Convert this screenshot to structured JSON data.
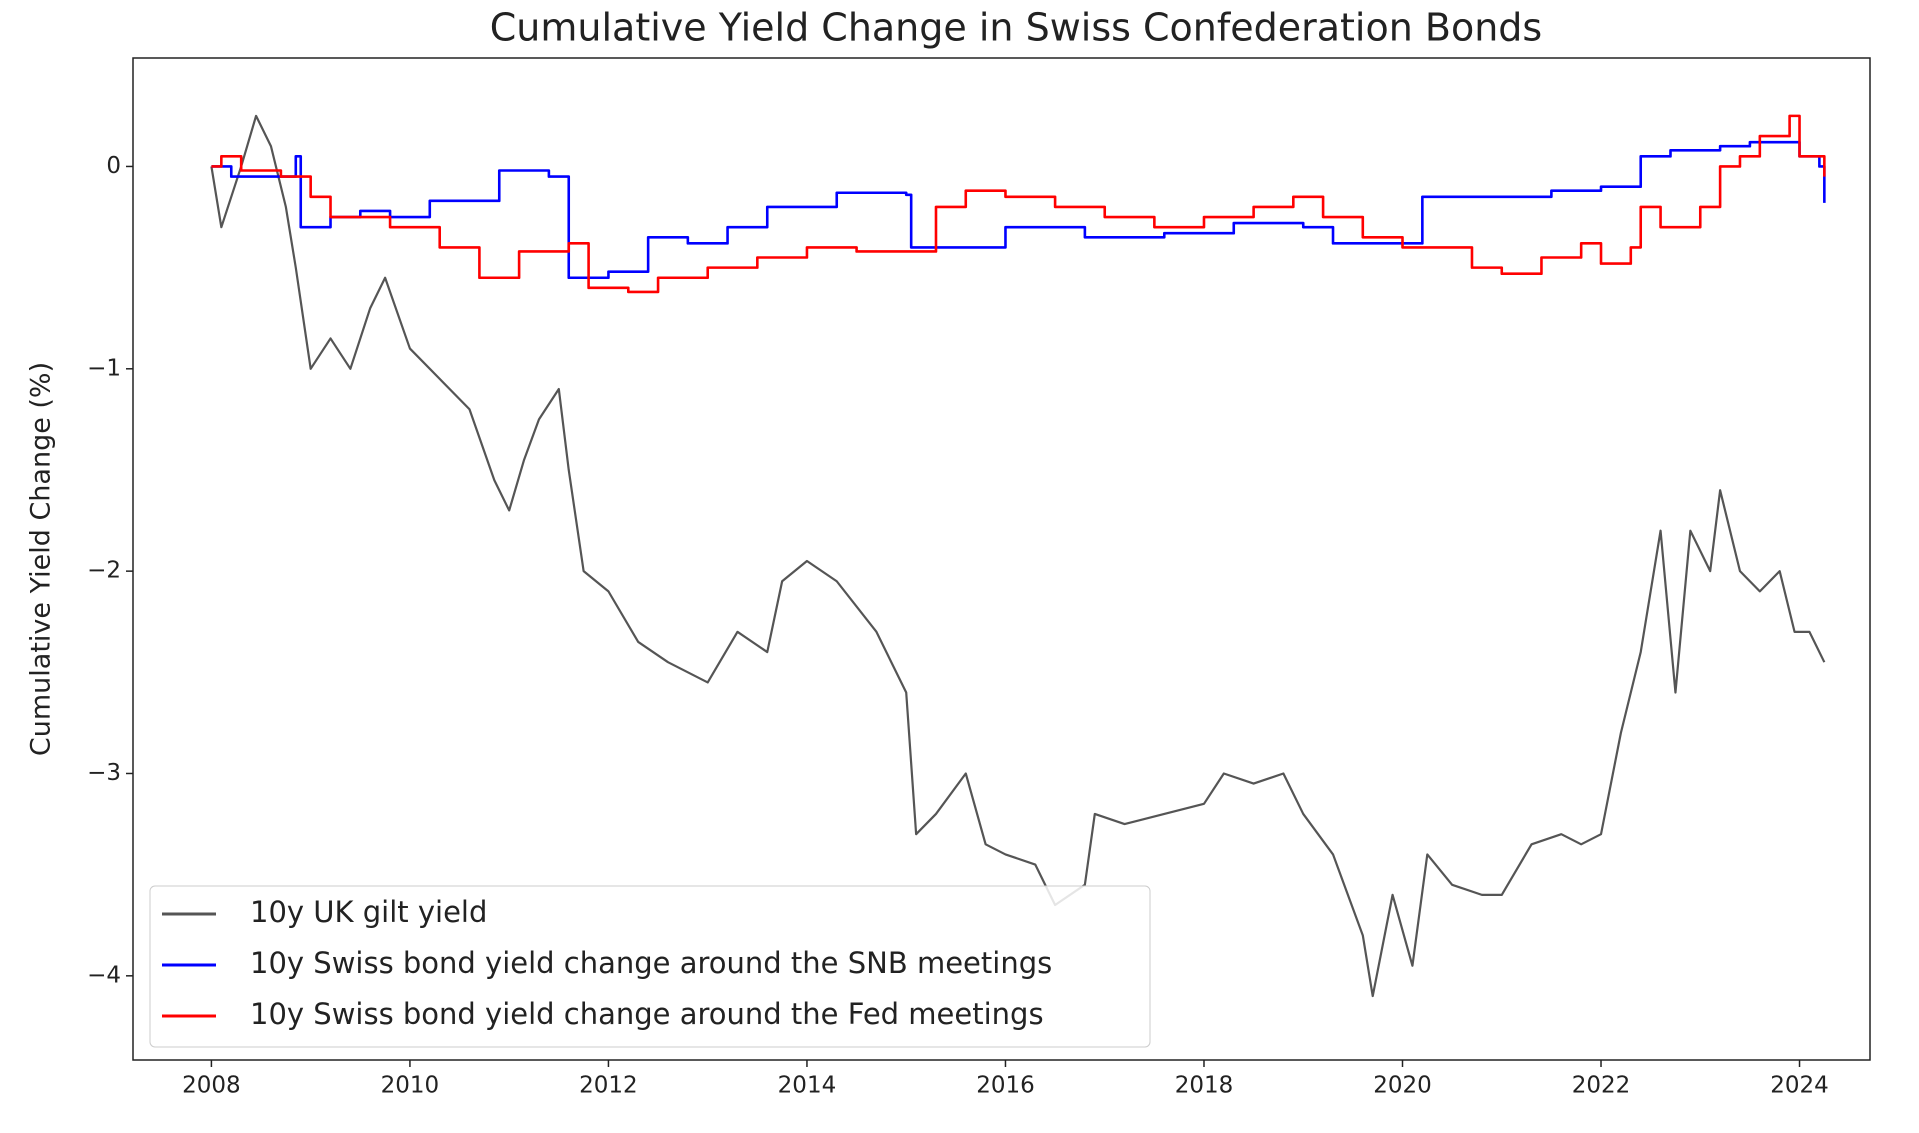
{
  "chart_data": {
    "type": "line",
    "title": "Cumulative Yield Change in Swiss Confederation Bonds",
    "y_label": "Cumulative Yield Change (%)",
    "xlim": [
      2007.21,
      2024.71
    ],
    "ylim": [
      -4.416,
      0.536
    ],
    "xticks": [
      2008,
      2010,
      2012,
      2014,
      2016,
      2018,
      2020,
      2022,
      2024
    ],
    "yticks": [
      0,
      {
        "value": -1,
        "label": "−1"
      },
      {
        "value": -2,
        "label": "−2"
      },
      {
        "value": -3,
        "label": "−3"
      },
      {
        "value": -4,
        "label": "−4"
      }
    ],
    "grid": false,
    "legend": "lower left",
    "series": [
      {
        "name": "10y UK gilt yield",
        "color": "#555555",
        "step": false,
        "x": [
          2008.0,
          2008.1,
          2008.3,
          2008.45,
          2008.6,
          2008.75,
          2008.85,
          2009.0,
          2009.2,
          2009.4,
          2009.6,
          2009.75,
          2010.0,
          2010.3,
          2010.6,
          2010.85,
          2011.0,
          2011.15,
          2011.3,
          2011.5,
          2011.6,
          2011.75,
          2012.0,
          2012.3,
          2012.6,
          2013.0,
          2013.3,
          2013.6,
          2013.75,
          2014.0,
          2014.3,
          2014.7,
          2015.0,
          2015.1,
          2015.3,
          2015.6,
          2015.8,
          2016.0,
          2016.3,
          2016.5,
          2016.8,
          2016.9,
          2017.2,
          2017.6,
          2018.0,
          2018.2,
          2018.5,
          2018.8,
          2019.0,
          2019.3,
          2019.6,
          2019.7,
          2019.9,
          2020.1,
          2020.25,
          2020.5,
          2020.8,
          2021.0,
          2021.3,
          2021.6,
          2021.8,
          2022.0,
          2022.2,
          2022.4,
          2022.6,
          2022.75,
          2022.9,
          2023.1,
          2023.2,
          2023.4,
          2023.6,
          2023.8,
          2023.95,
          2024.1,
          2024.25
        ],
        "values": [
          0,
          -0.3,
          0.0,
          0.25,
          0.1,
          -0.2,
          -0.5,
          -1.0,
          -0.85,
          -1.0,
          -0.7,
          -0.55,
          -0.9,
          -1.05,
          -1.2,
          -1.55,
          -1.7,
          -1.45,
          -1.25,
          -1.1,
          -1.5,
          -2.0,
          -2.1,
          -2.35,
          -2.45,
          -2.55,
          -2.3,
          -2.4,
          -2.05,
          -1.95,
          -2.05,
          -2.3,
          -2.6,
          -3.3,
          -3.2,
          -3.0,
          -3.35,
          -3.4,
          -3.45,
          -3.65,
          -3.55,
          -3.2,
          -3.25,
          -3.2,
          -3.15,
          -3.0,
          -3.05,
          -3.0,
          -3.2,
          -3.4,
          -3.8,
          -4.1,
          -3.6,
          -3.95,
          -3.4,
          -3.55,
          -3.6,
          -3.6,
          -3.35,
          -3.3,
          -3.35,
          -3.3,
          -2.8,
          -2.4,
          -1.8,
          -2.6,
          -1.8,
          -2.0,
          -1.6,
          -2.0,
          -2.1,
          -2.0,
          -2.3,
          -2.3,
          -2.45
        ]
      },
      {
        "name": "10y Swiss bond yield change around the SNB meetings",
        "color": "#0000ff",
        "step": true,
        "x": [
          2008.0,
          2008.2,
          2008.6,
          2008.85,
          2008.9,
          2009.2,
          2009.5,
          2009.8,
          2010.2,
          2010.9,
          2011.4,
          2011.6,
          2012.0,
          2012.4,
          2012.8,
          2013.2,
          2013.6,
          2014.3,
          2015.0,
          2015.05,
          2016.0,
          2016.8,
          2017.6,
          2018.3,
          2019.0,
          2019.3,
          2020.2,
          2021.5,
          2022.0,
          2022.4,
          2022.7,
          2023.2,
          2023.5,
          2024.0,
          2024.2,
          2024.25
        ],
        "values": [
          0,
          -0.05,
          -0.05,
          0.05,
          -0.3,
          -0.25,
          -0.22,
          -0.25,
          -0.17,
          -0.02,
          -0.05,
          -0.55,
          -0.52,
          -0.35,
          -0.38,
          -0.3,
          -0.2,
          -0.13,
          -0.14,
          -0.4,
          -0.3,
          -0.35,
          -0.33,
          -0.28,
          -0.3,
          -0.38,
          -0.15,
          -0.12,
          -0.1,
          0.05,
          0.08,
          0.1,
          0.12,
          0.05,
          0.0,
          -0.18
        ]
      },
      {
        "name": "10y Swiss bond yield change around the Fed meetings",
        "color": "#ff0000",
        "step": true,
        "x": [
          2008.0,
          2008.1,
          2008.3,
          2008.7,
          2009.0,
          2009.2,
          2009.8,
          2010.3,
          2010.7,
          2011.0,
          2011.1,
          2011.6,
          2011.8,
          2012.2,
          2012.5,
          2013.0,
          2013.5,
          2014.0,
          2014.5,
          2015.0,
          2015.3,
          2015.6,
          2016.0,
          2016.5,
          2017.0,
          2017.5,
          2018.0,
          2018.5,
          2018.9,
          2019.2,
          2019.6,
          2020.0,
          2020.4,
          2020.7,
          2021.0,
          2021.4,
          2021.8,
          2022.0,
          2022.3,
          2022.4,
          2022.6,
          2023.0,
          2023.2,
          2023.4,
          2023.6,
          2023.9,
          2024.0,
          2024.25
        ],
        "values": [
          0,
          0.05,
          -0.02,
          -0.05,
          -0.15,
          -0.25,
          -0.3,
          -0.4,
          -0.55,
          -0.55,
          -0.42,
          -0.38,
          -0.6,
          -0.62,
          -0.55,
          -0.5,
          -0.45,
          -0.4,
          -0.42,
          -0.42,
          -0.2,
          -0.12,
          -0.15,
          -0.2,
          -0.25,
          -0.3,
          -0.25,
          -0.2,
          -0.15,
          -0.25,
          -0.35,
          -0.4,
          -0.4,
          -0.5,
          -0.53,
          -0.45,
          -0.38,
          -0.48,
          -0.4,
          -0.2,
          -0.3,
          -0.2,
          0.0,
          0.05,
          0.15,
          0.25,
          0.05,
          -0.05
        ]
      }
    ]
  }
}
